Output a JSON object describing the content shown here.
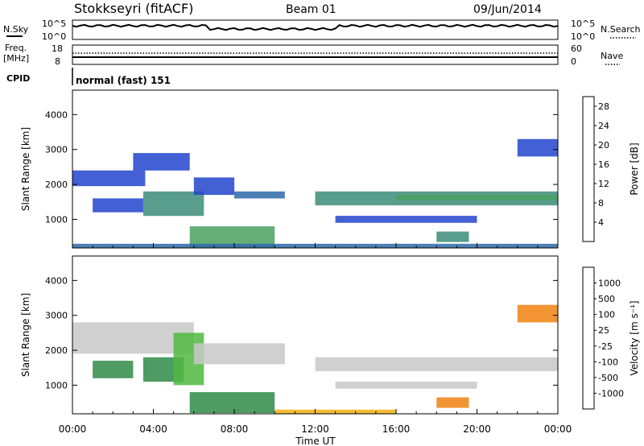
{
  "header": {
    "title": "Stokkseyri (fitACF)",
    "beam": "Beam 01",
    "date": "09/Jun/2014"
  },
  "top_panels": {
    "nsky_label": "N.Sky",
    "nsearch_label": "N.Search",
    "noise_ticks": [
      "10^5",
      "10^0"
    ],
    "freq_label_1": "Freq.",
    "freq_label_2": "[MHz]",
    "freq_ticks": [
      "18",
      "8"
    ],
    "nave_label": "Nave",
    "nave_ticks": [
      "60",
      "0"
    ],
    "cpid_label": "CPID",
    "cpid_value": "normal (fast) 151"
  },
  "colors": {
    "power_scale": [
      "#1010e0",
      "#2244cc",
      "#2d68a8",
      "#3c8c78",
      "#4aa060",
      "#d8c020",
      "#f0a010",
      "#f07020",
      "#e03020",
      "#d00000"
    ],
    "velocity_scale": [
      "#1a35c8",
      "#2a6aa8",
      "#2f8a48",
      "#50b840",
      "#c8c8c8",
      "#c0c0c0",
      "#f0b010",
      "#f08010",
      "#f04010",
      "#e00000"
    ]
  },
  "chart_data": [
    {
      "type": "heatmap",
      "title": "",
      "xlabel": "Time UT",
      "ylabel": "Slant Range [km]",
      "x_ticks": [
        "00:00",
        "04:00",
        "08:00",
        "12:00",
        "16:00",
        "20:00",
        "00:00"
      ],
      "y_ticks": [
        "1000",
        "2000",
        "3000",
        "4000"
      ],
      "ylim": [
        180,
        4700
      ],
      "grid": false,
      "colorbar_label": "Power [dB]",
      "colorbar_ticks": [
        "4",
        "8",
        "12",
        "16",
        "20",
        "24",
        "28"
      ],
      "colorbar_range": [
        0,
        30
      ],
      "regions": [
        {
          "t0": 0.0,
          "t1": 3.6,
          "r0": 1950,
          "r1": 2400,
          "v": 4
        },
        {
          "t0": 3.0,
          "t1": 5.8,
          "r0": 2400,
          "r1": 2900,
          "v": 5
        },
        {
          "t0": 1.0,
          "t1": 3.5,
          "r0": 1200,
          "r1": 1600,
          "v": 5
        },
        {
          "t0": 3.5,
          "t1": 6.5,
          "r0": 1100,
          "r1": 1800,
          "v": 9
        },
        {
          "t0": 6.0,
          "t1": 8.0,
          "r0": 1700,
          "r1": 2200,
          "v": 5
        },
        {
          "t0": 8.0,
          "t1": 10.5,
          "r0": 1600,
          "r1": 1800,
          "v": 6
        },
        {
          "t0": 5.8,
          "t1": 10.0,
          "r0": 200,
          "r1": 800,
          "v": 14
        },
        {
          "t0": 0.0,
          "t1": 24.0,
          "r0": 180,
          "r1": 300,
          "v": 6
        },
        {
          "t0": 12.0,
          "t1": 24.0,
          "r0": 1400,
          "r1": 1800,
          "v": 9
        },
        {
          "t0": 16.0,
          "t1": 24.0,
          "r0": 1550,
          "r1": 1700,
          "v": 13
        },
        {
          "t0": 13.0,
          "t1": 20.0,
          "r0": 900,
          "r1": 1100,
          "v": 5
        },
        {
          "t0": 18.0,
          "t1": 19.6,
          "r0": 350,
          "r1": 650,
          "v": 9
        },
        {
          "t0": 22.0,
          "t1": 24.0,
          "r0": 2800,
          "r1": 3300,
          "v": 5
        }
      ]
    },
    {
      "type": "heatmap",
      "title": "",
      "xlabel": "Time UT",
      "ylabel": "Slant Range [km]",
      "x_ticks": [
        "00:00",
        "04:00",
        "08:00",
        "12:00",
        "16:00",
        "20:00",
        "00:00"
      ],
      "y_ticks": [
        "1000",
        "2000",
        "3000",
        "4000"
      ],
      "ylim": [
        180,
        4700
      ],
      "grid": false,
      "colorbar_label": "Velocity [m s⁻¹]",
      "colorbar_ticks": [
        "1000",
        "500",
        "100",
        "25",
        "-25",
        "-100",
        "-500",
        "-1000"
      ],
      "regions": [
        {
          "t0": 0.0,
          "t1": 6.0,
          "r0": 1900,
          "r1": 2800,
          "v": 0
        },
        {
          "t0": 1.0,
          "t1": 3.0,
          "r0": 1200,
          "r1": 1700,
          "v": 300
        },
        {
          "t0": 3.5,
          "t1": 5.5,
          "r0": 1100,
          "r1": 1800,
          "v": 400
        },
        {
          "t0": 5.0,
          "t1": 6.5,
          "r0": 1000,
          "r1": 2500,
          "v": 80
        },
        {
          "t0": 6.0,
          "t1": 10.5,
          "r0": 1600,
          "r1": 2200,
          "v": 0
        },
        {
          "t0": 5.8,
          "t1": 10.0,
          "r0": 200,
          "r1": 800,
          "v": 100
        },
        {
          "t0": 10.0,
          "t1": 16.0,
          "r0": 180,
          "r1": 300,
          "v": -60
        },
        {
          "t0": 12.0,
          "t1": 24.0,
          "r0": 1400,
          "r1": 1800,
          "v": 0
        },
        {
          "t0": 13.0,
          "t1": 20.0,
          "r0": 900,
          "r1": 1100,
          "v": 0
        },
        {
          "t0": 18.0,
          "t1": 19.6,
          "r0": 350,
          "r1": 650,
          "v": -400
        },
        {
          "t0": 22.0,
          "t1": 24.0,
          "r0": 2800,
          "r1": 3300,
          "v": -150
        }
      ]
    }
  ]
}
